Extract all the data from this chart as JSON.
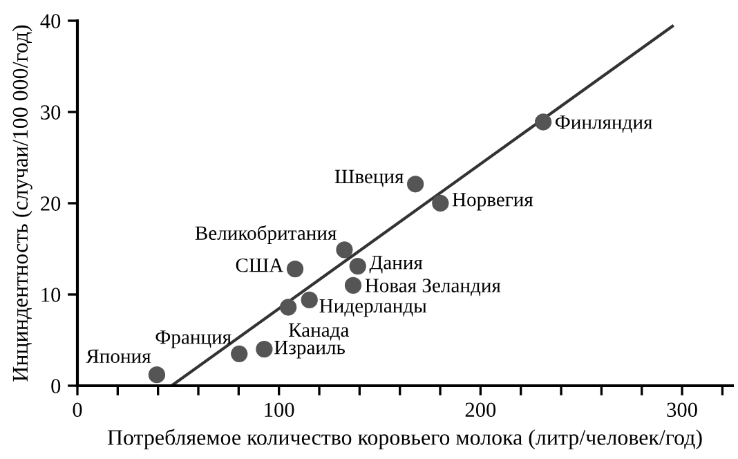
{
  "chart_data": {
    "type": "scatter",
    "xlabel": "Потребляемое количество коровьего молока (литр/человек/год)",
    "ylabel": "Инциндентность (случаи/100 000/год)",
    "xlim": [
      0,
      325
    ],
    "ylim": [
      0,
      40
    ],
    "xticks": [
      0,
      {
        "value": 20,
        "label": null
      },
      {
        "value": 40,
        "label": null
      },
      {
        "value": 60,
        "label": null
      },
      {
        "value": 80,
        "label": null
      },
      100,
      {
        "value": 120,
        "label": null
      },
      {
        "value": 140,
        "label": null
      },
      {
        "value": 160,
        "label": null
      },
      {
        "value": 180,
        "label": null
      },
      200,
      {
        "value": 220,
        "label": null
      },
      {
        "value": 240,
        "label": null
      },
      {
        "value": 260,
        "label": null
      },
      {
        "value": 280,
        "label": null
      },
      300,
      {
        "value": 320,
        "label": null
      }
    ],
    "yticks": [
      0,
      10,
      20,
      30,
      40
    ],
    "grid": false,
    "legend": false,
    "marker": "circle",
    "series": [
      {
        "color": "#555555",
        "x": [
          39.4,
          80.3,
          92.7,
          104.6,
          115.1,
          108,
          132.5,
          139.1,
          136.8,
          167.7,
          180.1,
          231.1
        ],
        "values": [
          1.2,
          3.5,
          4.0,
          8.6,
          9.4,
          12.8,
          14.9,
          13.1,
          11.0,
          22.1,
          20.0,
          28.9
        ]
      },
      {
        "type": "line",
        "color": "#333333",
        "x": [
          46.7,
          295.2
        ],
        "values": [
          0,
          39.4
        ],
        "marker": "none",
        "line_style": "solid"
      }
    ],
    "annotations": [
      {
        "text": "Япония",
        "x": 39.4,
        "y": 1.2
      },
      {
        "text": "Франция",
        "x": 80.3,
        "y": 3.5
      },
      {
        "text": "Израиль",
        "x": 92.7,
        "y": 4.0
      },
      {
        "text": "Канада",
        "x": 104.6,
        "y": 8.6
      },
      {
        "text": "Нидерланды",
        "x": 115.1,
        "y": 9.4
      },
      {
        "text": "США",
        "x": 108,
        "y": 12.8
      },
      {
        "text": "Великобритания",
        "x": 132.5,
        "y": 14.9
      },
      {
        "text": "Дания",
        "x": 139.1,
        "y": 13.1
      },
      {
        "text": "Новая Зеландия",
        "x": 136.8,
        "y": 11.0
      },
      {
        "text": "Швеция",
        "x": 167.7,
        "y": 22.1
      },
      {
        "text": "Норвегия",
        "x": 180.1,
        "y": 20.0
      },
      {
        "text": "Финляндия",
        "x": 231.1,
        "y": 28.9
      }
    ]
  }
}
